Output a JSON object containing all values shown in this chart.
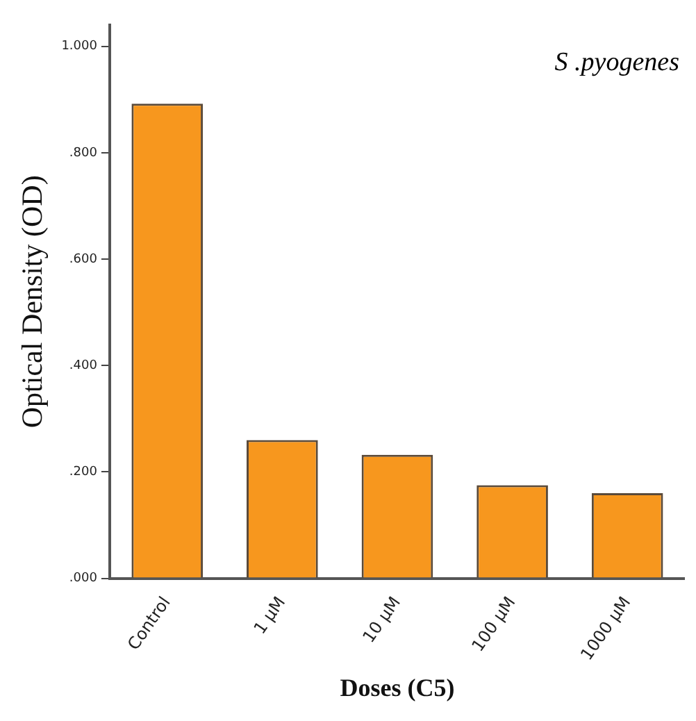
{
  "chart_data": {
    "type": "bar",
    "xlabel": "Doses (C5)",
    "ylabel": "Optical Density (OD)",
    "annotations": [
      "S .pyogenes"
    ],
    "categories": [
      "Control",
      "1 µM",
      "10 µM",
      "100 µM",
      "1000 µM"
    ],
    "values": [
      0.892,
      0.26,
      0.232,
      0.175,
      0.16
    ],
    "color": "#f7971e",
    "ylim": [
      0,
      1.04
    ],
    "yticks": [
      {
        "value": 0,
        "label": ".000"
      },
      {
        "value": 0.2,
        "label": ".200"
      },
      {
        "value": 0.4,
        "label": ".400"
      },
      {
        "value": 0.6,
        "label": ".600"
      },
      {
        "value": 0.8,
        "label": ".800"
      },
      {
        "value": 1,
        "label": "1.000"
      }
    ],
    "grid": false,
    "legend": false
  }
}
